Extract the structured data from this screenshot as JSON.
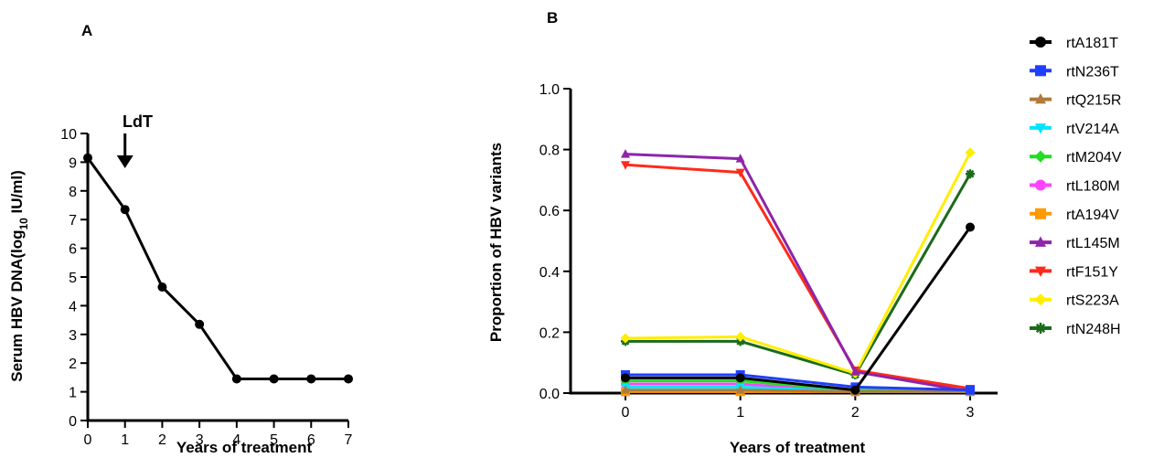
{
  "chart_data": [
    {
      "panel": "A",
      "type": "line",
      "title": "",
      "xlabel": "Years of treatment",
      "ylabel_main": "Serum HBV DNA(log",
      "ylabel_sub": "10",
      "ylabel_end": " IU/ml)",
      "xlim": [
        0,
        7
      ],
      "ylim": [
        0,
        10
      ],
      "x_ticks": [
        "0",
        "1",
        "2",
        "3",
        "4",
        "5",
        "6",
        "7"
      ],
      "y_ticks": [
        "0",
        "1",
        "2",
        "3",
        "4",
        "5",
        "6",
        "7",
        "8",
        "9",
        "10"
      ],
      "annotation": {
        "text": "LdT",
        "x": 1
      },
      "grid": false,
      "series": [
        {
          "color": "#000000",
          "marker": "circle",
          "x": [
            0,
            1,
            2,
            3,
            4,
            5,
            6,
            7
          ],
          "y": [
            9.15,
            7.35,
            4.65,
            3.35,
            1.45,
            1.45,
            1.45,
            1.45
          ]
        }
      ]
    },
    {
      "panel": "B",
      "type": "line",
      "title": "",
      "xlabel": "Years of treatment",
      "ylabel": "Proportion of HBV variants",
      "xlim": [
        0,
        3
      ],
      "ylim": [
        0,
        1.0
      ],
      "x_ticks": [
        "0",
        "1",
        "2",
        "3"
      ],
      "y_ticks": [
        "0.0",
        "0.2",
        "0.4",
        "0.6",
        "0.8",
        "1.0"
      ],
      "legend_position": "right",
      "grid": false,
      "x": [
        0,
        1,
        2,
        3
      ],
      "series": [
        {
          "name": "rtA181T",
          "color": "#000000",
          "marker": "circle",
          "values": [
            0.05,
            0.05,
            0.01,
            0.545
          ]
        },
        {
          "name": "rtN236T",
          "color": "#1f3fff",
          "marker": "square",
          "values": [
            0.06,
            0.06,
            0.02,
            0.01
          ]
        },
        {
          "name": "rtQ215R",
          "color": "#b07a3a",
          "marker": "triangle-up",
          "values": [
            0.01,
            0.01,
            0.005,
            0.005
          ]
        },
        {
          "name": "rtV214A",
          "color": "#00e5ff",
          "marker": "triangle-down",
          "values": [
            0.02,
            0.02,
            0.005,
            0.005
          ]
        },
        {
          "name": "rtM204V",
          "color": "#22dd22",
          "marker": "diamond",
          "values": [
            0.04,
            0.04,
            0.01,
            0.005
          ]
        },
        {
          "name": "rtL180M",
          "color": "#ff44ff",
          "marker": "circle",
          "values": [
            0.03,
            0.03,
            0.005,
            0.005
          ]
        },
        {
          "name": "rtA194V",
          "color": "#ff9900",
          "marker": "square",
          "values": [
            0.005,
            0.005,
            0.005,
            0.005
          ]
        },
        {
          "name": "rtL145M",
          "color": "#8e24aa",
          "marker": "triangle-up",
          "values": [
            0.785,
            0.77,
            0.07,
            0.005
          ]
        },
        {
          "name": "rtF151Y",
          "color": "#ff2a1a",
          "marker": "triangle-down",
          "values": [
            0.75,
            0.725,
            0.075,
            0.015
          ]
        },
        {
          "name": "rtS223A",
          "color": "#ffee00",
          "marker": "diamond",
          "values": [
            0.18,
            0.185,
            0.065,
            0.79
          ]
        },
        {
          "name": "rtN248H",
          "color": "#1a6b1a",
          "marker": "asterisk",
          "values": [
            0.17,
            0.17,
            0.06,
            0.72
          ]
        }
      ]
    }
  ]
}
